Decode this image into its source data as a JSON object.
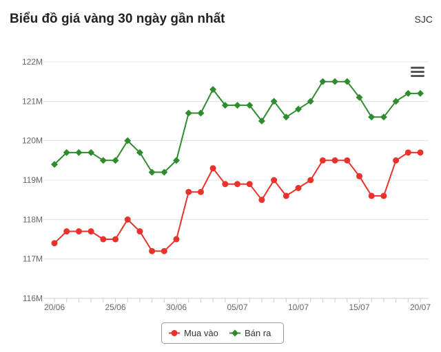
{
  "header": {
    "title": "Biểu đồ giá vàng 30 ngày gần nhất",
    "brand": "SJC"
  },
  "chart_data": {
    "type": "line",
    "title": "",
    "xlabel": "",
    "ylabel": "",
    "ylim": [
      116,
      122
    ],
    "yticks": [
      116,
      117,
      118,
      119,
      120,
      121,
      122
    ],
    "ytick_labels": [
      "116M",
      "117M",
      "118M",
      "119M",
      "120M",
      "121M",
      "122M"
    ],
    "x": [
      "20/06",
      "21/06",
      "22/06",
      "23/06",
      "24/06",
      "25/06",
      "26/06",
      "27/06",
      "28/06",
      "29/06",
      "30/06",
      "01/07",
      "02/07",
      "03/07",
      "04/07",
      "05/07",
      "06/07",
      "07/07",
      "08/07",
      "09/07",
      "10/07",
      "11/07",
      "12/07",
      "13/07",
      "14/07",
      "15/07",
      "16/07",
      "17/07",
      "18/07",
      "19/07",
      "20/07"
    ],
    "xtick_labels": [
      "20/06",
      "25/06",
      "30/06",
      "05/07",
      "10/07",
      "15/07",
      "20/07"
    ],
    "series": [
      {
        "name": "Mua vào",
        "color": "#e8322b",
        "marker": "circle",
        "values": [
          117.4,
          117.7,
          117.7,
          117.7,
          117.5,
          117.5,
          118.0,
          117.7,
          117.2,
          117.2,
          117.5,
          118.7,
          118.7,
          119.3,
          118.9,
          118.9,
          118.9,
          118.5,
          119.0,
          118.6,
          118.8,
          119.0,
          119.5,
          119.5,
          119.5,
          119.1,
          118.6,
          118.6,
          119.5,
          119.7,
          119.7
        ]
      },
      {
        "name": "Bán ra",
        "color": "#2e8b2e",
        "marker": "diamond",
        "values": [
          119.4,
          119.7,
          119.7,
          119.7,
          119.5,
          119.5,
          120.0,
          119.7,
          119.2,
          119.2,
          119.5,
          120.7,
          120.7,
          121.3,
          120.9,
          120.9,
          120.9,
          120.5,
          121.0,
          120.6,
          120.8,
          121.0,
          121.5,
          121.5,
          121.5,
          121.1,
          120.6,
          120.6,
          121.0,
          121.2,
          121.2
        ]
      }
    ],
    "grid": true,
    "legend": "bottom-center",
    "menu_icon": "hamburger-menu-icon"
  }
}
